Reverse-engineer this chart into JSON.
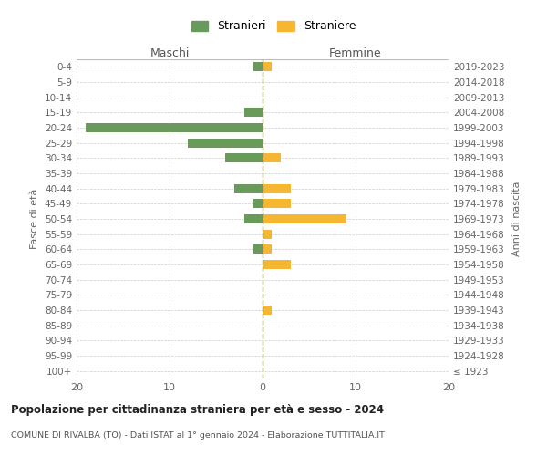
{
  "age_groups": [
    "100+",
    "95-99",
    "90-94",
    "85-89",
    "80-84",
    "75-79",
    "70-74",
    "65-69",
    "60-64",
    "55-59",
    "50-54",
    "45-49",
    "40-44",
    "35-39",
    "30-34",
    "25-29",
    "20-24",
    "15-19",
    "10-14",
    "5-9",
    "0-4"
  ],
  "birth_years": [
    "≤ 1923",
    "1924-1928",
    "1929-1933",
    "1934-1938",
    "1939-1943",
    "1944-1948",
    "1949-1953",
    "1954-1958",
    "1959-1963",
    "1964-1968",
    "1969-1973",
    "1974-1978",
    "1979-1983",
    "1984-1988",
    "1989-1993",
    "1994-1998",
    "1999-2003",
    "2004-2008",
    "2009-2013",
    "2014-2018",
    "2019-2023"
  ],
  "males": [
    0,
    0,
    0,
    0,
    0,
    0,
    0,
    0,
    1,
    0,
    2,
    1,
    3,
    0,
    4,
    8,
    19,
    2,
    0,
    0,
    1
  ],
  "females": [
    0,
    0,
    0,
    0,
    1,
    0,
    0,
    3,
    1,
    1,
    9,
    3,
    3,
    0,
    2,
    0,
    0,
    0,
    0,
    0,
    1
  ],
  "color_male": "#6a9a5b",
  "color_female": "#f5b731",
  "title": "Popolazione per cittadinanza straniera per età e sesso - 2024",
  "subtitle": "COMUNE DI RIVALBA (TO) - Dati ISTAT al 1° gennaio 2024 - Elaborazione TUTTITALIA.IT",
  "xlabel_left": "Maschi",
  "xlabel_right": "Femmine",
  "ylabel_left": "Fasce di età",
  "ylabel_right": "Anni di nascita",
  "legend_male": "Stranieri",
  "legend_female": "Straniere",
  "xlim": 20,
  "background_color": "#ffffff",
  "grid_color": "#cccccc"
}
